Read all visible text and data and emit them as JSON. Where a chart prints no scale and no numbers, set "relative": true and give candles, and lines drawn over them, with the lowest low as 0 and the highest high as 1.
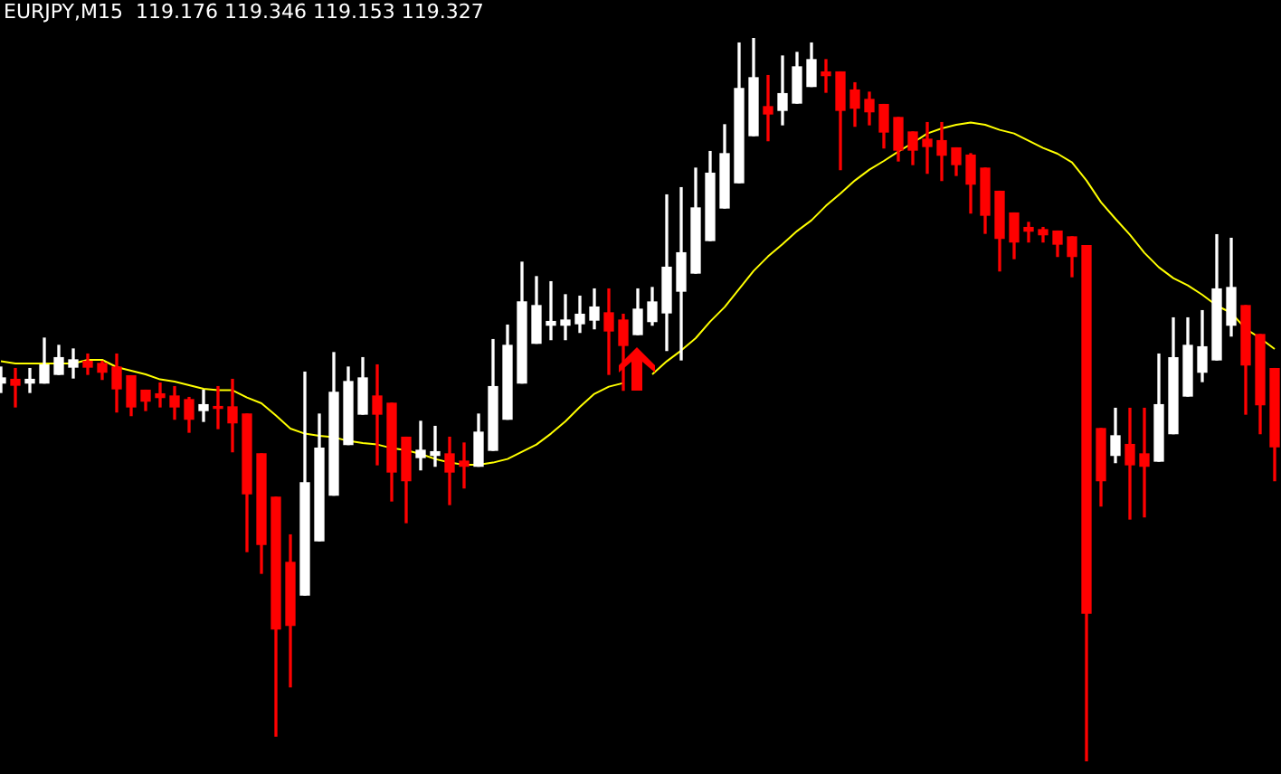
{
  "chart_data": {
    "type": "candlestick",
    "title": "EURJPY,M15  119.176 119.346 119.153 119.327",
    "relative": true,
    "grid": false,
    "legend": false,
    "categories": [
      null,
      null,
      null,
      null,
      null,
      null,
      null,
      null,
      null,
      null,
      null,
      null,
      null,
      null,
      null,
      null,
      null,
      null,
      null,
      null,
      null,
      null,
      null,
      null,
      null,
      null,
      null,
      null,
      null,
      null,
      null,
      null,
      null,
      null,
      null,
      null,
      null,
      null,
      null,
      null,
      null,
      null,
      null,
      null,
      null,
      null,
      null,
      null,
      null,
      null,
      null,
      null,
      null,
      null,
      null,
      null,
      null,
      null,
      null,
      null,
      null,
      null,
      null,
      null,
      null,
      null,
      null,
      null,
      null,
      null,
      null,
      null,
      null,
      null,
      null,
      null,
      null,
      null,
      null,
      null,
      null,
      null,
      null,
      null,
      null,
      null,
      null,
      null,
      null
    ],
    "ohlc": [
      [
        0.523,
        0.545,
        0.51,
        0.53
      ],
      [
        0.528,
        0.543,
        0.49,
        0.52
      ],
      [
        0.523,
        0.543,
        0.51,
        0.528
      ],
      [
        0.523,
        0.585,
        0.523,
        0.548
      ],
      [
        0.535,
        0.575,
        0.535,
        0.558
      ],
      [
        0.545,
        0.57,
        0.53,
        0.555
      ],
      [
        0.553,
        0.563,
        0.535,
        0.545
      ],
      [
        0.55,
        0.553,
        0.528,
        0.538
      ],
      [
        0.545,
        0.563,
        0.483,
        0.515
      ],
      [
        0.533,
        0.533,
        0.478,
        0.49
      ],
      [
        0.513,
        0.513,
        0.485,
        0.498
      ],
      [
        0.508,
        0.523,
        0.49,
        0.503
      ],
      [
        0.505,
        0.518,
        0.473,
        0.49
      ],
      [
        0.5,
        0.503,
        0.455,
        0.473
      ],
      [
        0.485,
        0.513,
        0.47,
        0.493
      ],
      [
        0.49,
        0.518,
        0.46,
        0.488
      ],
      [
        0.49,
        0.528,
        0.428,
        0.468
      ],
      [
        0.48,
        0.48,
        0.29,
        0.37
      ],
      [
        0.425,
        0.425,
        0.26,
        0.3
      ],
      [
        0.365,
        0.365,
        0.035,
        0.183
      ],
      [
        0.275,
        0.313,
        0.103,
        0.188
      ],
      [
        0.23,
        0.538,
        0.23,
        0.385
      ],
      [
        0.305,
        0.48,
        0.305,
        0.433
      ],
      [
        0.368,
        0.565,
        0.368,
        0.51
      ],
      [
        0.438,
        0.545,
        0.438,
        0.525
      ],
      [
        0.48,
        0.558,
        0.48,
        0.53
      ],
      [
        0.505,
        0.548,
        0.41,
        0.48
      ],
      [
        0.495,
        0.495,
        0.36,
        0.4
      ],
      [
        0.448,
        0.448,
        0.33,
        0.388
      ],
      [
        0.42,
        0.47,
        0.403,
        0.43
      ],
      [
        0.423,
        0.463,
        0.408,
        0.428
      ],
      [
        0.425,
        0.448,
        0.355,
        0.4
      ],
      [
        0.415,
        0.44,
        0.378,
        0.408
      ],
      [
        0.408,
        0.48,
        0.408,
        0.455
      ],
      [
        0.43,
        0.583,
        0.43,
        0.518
      ],
      [
        0.473,
        0.603,
        0.473,
        0.575
      ],
      [
        0.523,
        0.69,
        0.523,
        0.635
      ],
      [
        0.578,
        0.67,
        0.578,
        0.63
      ],
      [
        0.603,
        0.663,
        0.583,
        0.608
      ],
      [
        0.603,
        0.645,
        0.583,
        0.61
      ],
      [
        0.605,
        0.643,
        0.593,
        0.618
      ],
      [
        0.61,
        0.653,
        0.598,
        0.628
      ],
      [
        0.62,
        0.653,
        0.535,
        0.595
      ],
      [
        0.61,
        0.618,
        0.513,
        0.575
      ],
      [
        0.59,
        0.653,
        0.59,
        0.625
      ],
      [
        0.608,
        0.655,
        0.603,
        0.635
      ],
      [
        0.62,
        0.783,
        0.568,
        0.683
      ],
      [
        0.65,
        0.793,
        0.555,
        0.703
      ],
      [
        0.675,
        0.82,
        0.675,
        0.765
      ],
      [
        0.72,
        0.843,
        0.72,
        0.813
      ],
      [
        0.765,
        0.88,
        0.765,
        0.84
      ],
      [
        0.8,
        0.993,
        0.8,
        0.93
      ],
      [
        0.865,
        1,
        0.865,
        0.945
      ],
      [
        0.905,
        0.948,
        0.858,
        0.895
      ],
      [
        0.9,
        0.975,
        0.88,
        0.923
      ],
      [
        0.91,
        0.98,
        0.91,
        0.96
      ],
      [
        0.933,
        0.993,
        0.933,
        0.97
      ],
      [
        0.953,
        0.97,
        0.925,
        0.948
      ],
      [
        0.953,
        0.953,
        0.818,
        0.9
      ],
      [
        0.928,
        0.938,
        0.878,
        0.903
      ],
      [
        0.915,
        0.925,
        0.88,
        0.898
      ],
      [
        0.908,
        0.908,
        0.848,
        0.87
      ],
      [
        0.89,
        0.89,
        0.83,
        0.845
      ],
      [
        0.87,
        0.87,
        0.825,
        0.845
      ],
      [
        0.86,
        0.883,
        0.813,
        0.85
      ],
      [
        0.858,
        0.883,
        0.803,
        0.838
      ],
      [
        0.848,
        0.848,
        0.81,
        0.825
      ],
      [
        0.838,
        0.84,
        0.758,
        0.798
      ],
      [
        0.82,
        0.82,
        0.73,
        0.755
      ],
      [
        0.788,
        0.788,
        0.678,
        0.723
      ],
      [
        0.758,
        0.758,
        0.695,
        0.718
      ],
      [
        0.738,
        0.745,
        0.718,
        0.733
      ],
      [
        0.735,
        0.738,
        0.718,
        0.728
      ],
      [
        0.733,
        0.733,
        0.698,
        0.715
      ],
      [
        0.725,
        0.725,
        0.67,
        0.698
      ],
      [
        0.713,
        0.713,
        0,
        0.205
      ],
      [
        0.46,
        0.46,
        0.353,
        0.388
      ],
      [
        0.423,
        0.488,
        0.413,
        0.45
      ],
      [
        0.438,
        0.488,
        0.335,
        0.41
      ],
      [
        0.425,
        0.488,
        0.338,
        0.408
      ],
      [
        0.415,
        0.563,
        0.415,
        0.493
      ],
      [
        0.453,
        0.613,
        0.453,
        0.558
      ],
      [
        0.505,
        0.613,
        0.505,
        0.575
      ],
      [
        0.538,
        0.623,
        0.525,
        0.573
      ],
      [
        0.555,
        0.728,
        0.555,
        0.653
      ],
      [
        0.603,
        0.723,
        0.588,
        0.655
      ],
      [
        0.63,
        0.63,
        0.48,
        0.548
      ],
      [
        0.59,
        0.59,
        0.453,
        0.493
      ],
      [
        0.543,
        0.543,
        0.388,
        0.435
      ]
    ],
    "colors": [
      "#ffffff",
      "#ff0000",
      "#ffffff",
      "#ffffff",
      "#ffffff",
      "#ffffff",
      "#ff0000",
      "#ff0000",
      "#ff0000",
      "#ff0000",
      "#ff0000",
      "#ff0000",
      "#ff0000",
      "#ff0000",
      "#ffffff",
      "#ff0000",
      "#ff0000",
      "#ff0000",
      "#ff0000",
      "#ff0000",
      "#ff0000",
      "#ffffff",
      "#ffffff",
      "#ffffff",
      "#ffffff",
      "#ffffff",
      "#ff0000",
      "#ff0000",
      "#ff0000",
      "#ffffff",
      "#ffffff",
      "#ff0000",
      "#ff0000",
      "#ffffff",
      "#ffffff",
      "#ffffff",
      "#ffffff",
      "#ffffff",
      "#ffffff",
      "#ffffff",
      "#ffffff",
      "#ffffff",
      "#ff0000",
      "#ff0000",
      "#ffffff",
      "#ffffff",
      "#ffffff",
      "#ffffff",
      "#ffffff",
      "#ffffff",
      "#ffffff",
      "#ffffff",
      "#ffffff",
      "#ff0000",
      "#ffffff",
      "#ffffff",
      "#ffffff",
      "#ff0000",
      "#ff0000",
      "#ff0000",
      "#ff0000",
      "#ff0000",
      "#ff0000",
      "#ff0000",
      "#ff0000",
      "#ff0000",
      "#ff0000",
      "#ff0000",
      "#ff0000",
      "#ff0000",
      "#ff0000",
      "#ff0000",
      "#ff0000",
      "#ff0000",
      "#ff0000",
      "#ff0000",
      "#ff0000",
      "#ffffff",
      "#ff0000",
      "#ff0000",
      "#ffffff",
      "#ffffff",
      "#ffffff",
      "#ffffff",
      "#ffffff",
      "#ffffff",
      "#ff0000",
      "#ff0000",
      "#ff0000"
    ],
    "series": [
      {
        "type": "line",
        "color": "#ffff00",
        "marker": "none",
        "values": [
          0.553,
          0.55,
          0.55,
          0.55,
          0.55,
          0.55,
          0.555,
          0.555,
          0.545,
          0.54,
          0.535,
          0.528,
          0.525,
          0.52,
          0.515,
          0.513,
          0.513,
          0.503,
          0.495,
          0.478,
          0.46,
          0.453,
          0.45,
          0.448,
          0.443,
          0.44,
          0.438,
          0.433,
          0.43,
          0.425,
          0.418,
          0.413,
          0.41,
          0.41,
          0.413,
          0.418,
          0.428,
          0.438,
          0.453,
          0.47,
          0.49,
          0.508,
          0.518,
          0.523,
          null,
          0.535,
          0.553,
          0.568,
          0.585,
          0.608,
          0.628,
          0.653,
          0.678,
          0.698,
          0.715,
          0.733,
          0.748,
          0.768,
          0.785,
          0.803,
          0.818,
          0.83,
          0.843,
          0.855,
          0.868,
          0.875,
          0.88,
          0.883,
          0.88,
          0.873,
          0.868,
          0.858,
          0.848,
          0.84,
          0.828,
          0.803,
          0.773,
          0.75,
          0.728,
          0.703,
          0.683,
          0.668,
          0.658,
          0.645,
          0.63,
          0.62,
          0.598,
          0.585,
          0.57
        ]
      }
    ]
  }
}
